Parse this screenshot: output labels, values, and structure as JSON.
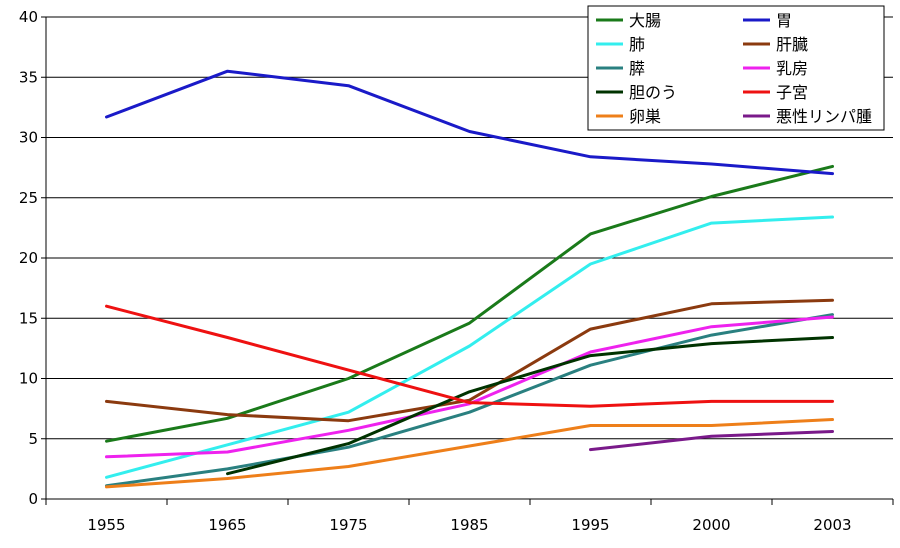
{
  "chart_data": {
    "type": "line",
    "title": "",
    "xlabel": "",
    "ylabel": "",
    "ylim": [
      0,
      40
    ],
    "yticks": [
      "0",
      "5",
      "10",
      "15",
      "20",
      "25",
      "30",
      "35",
      "40"
    ],
    "categories": [
      "1955",
      "1965",
      "1975",
      "1985",
      "1995",
      "2000",
      "2003"
    ],
    "grid": "horizontal",
    "legend_position": "top-right",
    "series": [
      {
        "name": "大腸",
        "color": "#1a7a1a",
        "values": [
          4.8,
          6.7,
          10.0,
          14.6,
          22.0,
          25.1,
          27.6
        ]
      },
      {
        "name": "胃",
        "color": "#1a1ac8",
        "values": [
          31.7,
          35.5,
          34.3,
          30.5,
          28.4,
          27.8,
          27.0
        ]
      },
      {
        "name": "肺",
        "color": "#33eeee",
        "values": [
          1.8,
          4.5,
          7.2,
          12.7,
          19.5,
          22.9,
          23.4
        ]
      },
      {
        "name": "肝臓",
        "color": "#8b3a0f",
        "values": [
          8.1,
          7.0,
          6.5,
          8.2,
          14.1,
          16.2,
          16.5
        ]
      },
      {
        "name": "膵",
        "color": "#2a8080",
        "values": [
          1.1,
          2.5,
          4.3,
          7.2,
          11.1,
          13.6,
          15.3
        ]
      },
      {
        "name": "乳房",
        "color": "#ee22ee",
        "values": [
          3.5,
          3.9,
          5.7,
          7.9,
          12.2,
          14.3,
          15.1
        ]
      },
      {
        "name": "胆のう",
        "color": "#003300",
        "values": [
          null,
          2.1,
          4.6,
          8.9,
          11.9,
          12.9,
          13.4
        ]
      },
      {
        "name": "子宮",
        "color": "#ee1111",
        "values": [
          16.0,
          13.4,
          10.7,
          8.0,
          7.7,
          8.1,
          8.1
        ]
      },
      {
        "name": "卵巣",
        "color": "#ee7f1a",
        "values": [
          1.0,
          1.7,
          2.7,
          4.4,
          6.1,
          6.1,
          6.6
        ]
      },
      {
        "name": "悪性リンパ腫",
        "color": "#7a1a8a",
        "values": [
          null,
          null,
          null,
          null,
          4.1,
          5.2,
          5.6
        ]
      }
    ]
  }
}
